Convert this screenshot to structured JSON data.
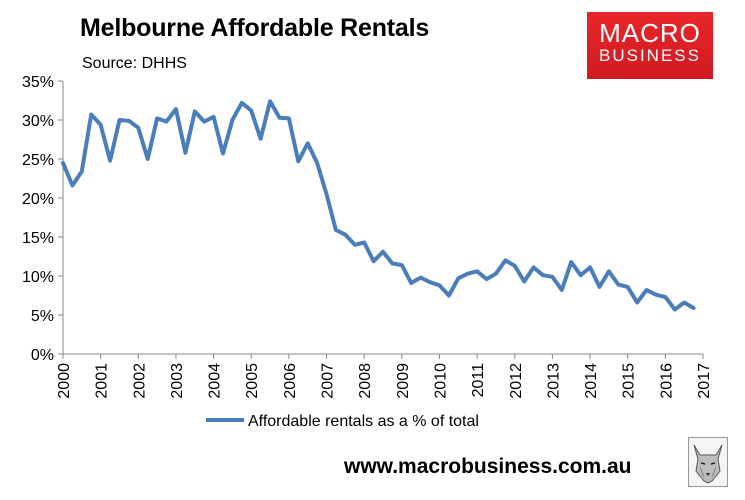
{
  "title": "Melbourne Affordable Rentals",
  "subtitle": "Source: DHHS",
  "logo": {
    "line1": "MACRO",
    "line2": "BUSINESS",
    "color": "#e3232a"
  },
  "website": "www.macrobusiness.com.au",
  "chart_data": {
    "type": "line",
    "title": "Melbourne Affordable Rentals",
    "xlabel": "",
    "ylabel": "",
    "ylim": [
      0,
      35
    ],
    "xlim": [
      2000,
      2017
    ],
    "grid": false,
    "legend_position": "bottom",
    "y_tick_labels": [
      "0%",
      "5%",
      "10%",
      "15%",
      "20%",
      "25%",
      "30%",
      "35%"
    ],
    "x_tick_labels": [
      "2000",
      "2001",
      "2002",
      "2003",
      "2004",
      "2005",
      "2006",
      "2007",
      "2008",
      "2009",
      "2010",
      "2011",
      "2012",
      "2013",
      "2014",
      "2015",
      "2016",
      "2017"
    ],
    "series": [
      {
        "name": "Affordable rentals as a % of total",
        "color": "#4a7ebb",
        "x": [
          2000.0,
          2000.25,
          2000.5,
          2000.75,
          2001.0,
          2001.25,
          2001.5,
          2001.75,
          2002.0,
          2002.25,
          2002.5,
          2002.75,
          2003.0,
          2003.25,
          2003.5,
          2003.75,
          2004.0,
          2004.25,
          2004.5,
          2004.75,
          2005.0,
          2005.25,
          2005.5,
          2005.75,
          2006.0,
          2006.25,
          2006.5,
          2006.75,
          2007.0,
          2007.25,
          2007.5,
          2007.75,
          2008.0,
          2008.25,
          2008.5,
          2008.75,
          2009.0,
          2009.25,
          2009.5,
          2009.75,
          2010.0,
          2010.25,
          2010.5,
          2010.75,
          2011.0,
          2011.25,
          2011.5,
          2011.75,
          2012.0,
          2012.25,
          2012.5,
          2012.75,
          2013.0,
          2013.25,
          2013.5,
          2013.75,
          2014.0,
          2014.25,
          2014.5,
          2014.75,
          2015.0,
          2015.25,
          2015.5,
          2015.75,
          2016.0,
          2016.25,
          2016.5,
          2016.75
        ],
        "values": [
          24.5,
          21.6,
          23.4,
          30.7,
          29.4,
          24.8,
          30.0,
          29.9,
          29.0,
          25.0,
          30.2,
          29.8,
          31.4,
          25.8,
          31.1,
          29.8,
          30.4,
          25.7,
          30.0,
          32.2,
          31.2,
          27.6,
          32.4,
          30.3,
          30.2,
          24.7,
          27.0,
          24.5,
          20.5,
          15.9,
          15.3,
          14.0,
          14.3,
          11.9,
          13.1,
          11.6,
          11.4,
          9.1,
          9.8,
          9.2,
          8.8,
          7.5,
          9.7,
          10.3,
          10.6,
          9.6,
          10.3,
          12.0,
          11.3,
          9.3,
          11.1,
          10.1,
          9.9,
          8.2,
          11.8,
          10.1,
          11.1,
          8.6,
          10.6,
          8.9,
          8.6,
          6.6,
          8.2,
          7.6,
          7.3,
          5.7,
          6.6,
          5.9
        ]
      }
    ]
  }
}
